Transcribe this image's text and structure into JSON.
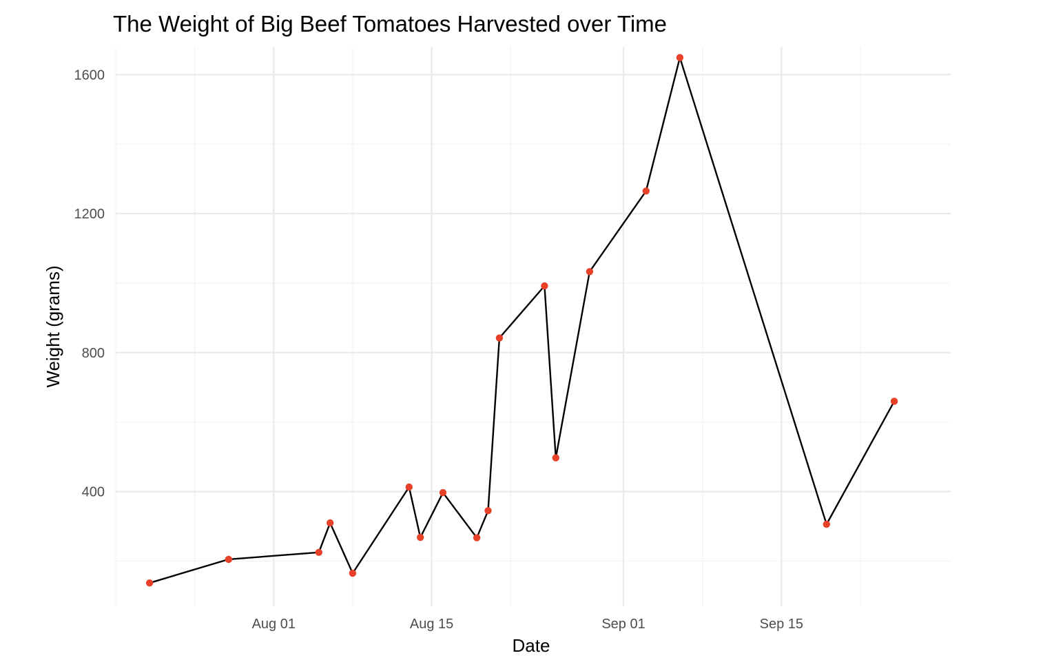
{
  "chart_data": {
    "type": "line",
    "title": "The Weight of Big Beef Tomatoes Harvested over Time",
    "xlabel": "Date",
    "ylabel": "Weight (grams)",
    "x_tick_labels": [
      "Aug 01",
      "Aug 15",
      "Sep 01",
      "Sep 15"
    ],
    "x_ticks": [
      "2020-08-01",
      "2020-08-15",
      "2020-09-01",
      "2020-09-15"
    ],
    "x_minor_ticks": [
      "2020-07-18",
      "2020-07-25",
      "2020-08-08",
      "2020-08-22",
      "2020-09-08",
      "2020-09-22"
    ],
    "y_ticks": [
      400,
      800,
      1200,
      1600
    ],
    "y_minor_ticks": [
      200,
      600,
      1000,
      1400
    ],
    "xlim": [
      "2020-07-18",
      "2020-09-30"
    ],
    "ylim": [
      70,
      1680
    ],
    "grid": true,
    "line_color": "#000000",
    "point_color": "#e8412a",
    "series": [
      {
        "x": [
          "2020-07-21",
          "2020-07-28",
          "2020-08-05",
          "2020-08-06",
          "2020-08-08",
          "2020-08-13",
          "2020-08-14",
          "2020-08-16",
          "2020-08-19",
          "2020-08-20",
          "2020-08-21",
          "2020-08-25",
          "2020-08-26",
          "2020-08-29",
          "2020-09-03",
          "2020-09-06",
          "2020-09-19",
          "2020-09-25"
        ],
        "y": [
          137,
          205,
          225,
          310,
          165,
          413,
          268,
          397,
          267,
          345,
          842,
          992,
          497,
          1033,
          1265,
          1649,
          306,
          660
        ]
      }
    ]
  }
}
